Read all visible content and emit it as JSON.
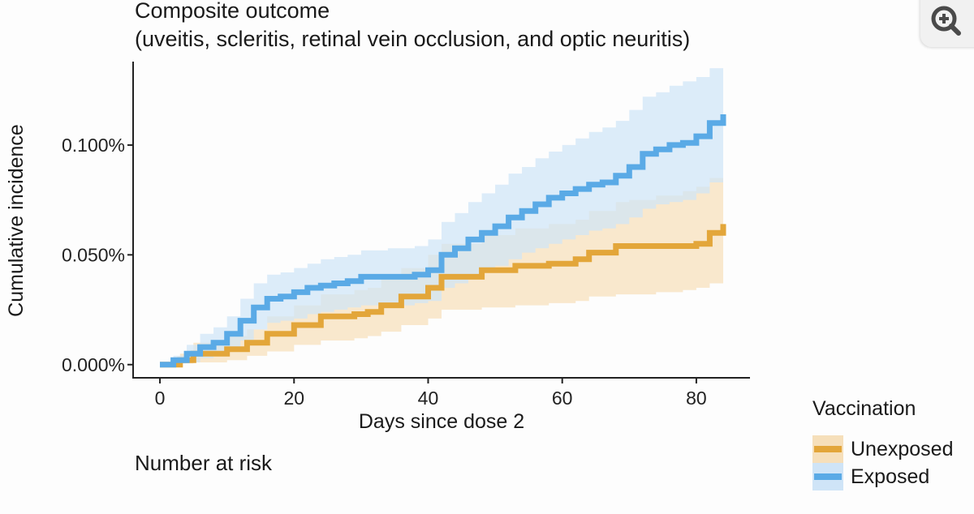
{
  "title_line1": "Composite outcome",
  "title_line2": "(uveitis, scleritis, retinal vein occlusion, and optic neuritis)",
  "risk_table_label": "Number at risk",
  "zoom_icon": "zoom-in-icon",
  "legend": {
    "title": "Vaccination",
    "items": [
      {
        "label": "Unexposed",
        "line_color": "#E3A63A",
        "fill_color": "#F6DFBA"
      },
      {
        "label": "Exposed",
        "line_color": "#5AAAE6",
        "fill_color": "#CFE4F7"
      }
    ]
  },
  "chart_data": {
    "type": "line",
    "title": "Composite outcome",
    "subtitle": "(uveitis, scleritis, retinal vein occlusion, and optic neuritis)",
    "xlabel": "Days since dose 2",
    "ylabel": "Cumulative incidence",
    "xlim": [
      -4,
      88
    ],
    "ylim": [
      -0.006,
      0.138
    ],
    "xticks": [
      0,
      20,
      40,
      60,
      80
    ],
    "xtick_labels": [
      "0",
      "20",
      "40",
      "60",
      "80"
    ],
    "yticks": [
      0,
      0.05,
      0.1
    ],
    "ytick_labels": [
      "0.000%",
      "0.050%",
      "0.100%"
    ],
    "step": true,
    "grid": false,
    "legend_position": "right-bottom",
    "series": [
      {
        "name": "Unexposed",
        "color": "#E3A63A",
        "band_color": "#F6DFBA",
        "x": [
          0,
          3,
          5,
          10,
          13,
          16,
          20,
          24,
          29,
          31,
          33,
          36,
          40,
          42,
          48,
          53,
          58,
          62,
          64,
          68,
          70,
          74,
          78,
          80,
          82,
          84
        ],
        "y": [
          0,
          0.002,
          0.005,
          0.007,
          0.01,
          0.014,
          0.018,
          0.022,
          0.023,
          0.024,
          0.027,
          0.031,
          0.035,
          0.04,
          0.043,
          0.045,
          0.046,
          0.048,
          0.051,
          0.054,
          0.054,
          0.054,
          0.054,
          0.055,
          0.06,
          0.064
        ],
        "lower": [
          0,
          0.0005,
          0.001,
          0.002,
          0.004,
          0.006,
          0.009,
          0.011,
          0.012,
          0.013,
          0.015,
          0.018,
          0.021,
          0.025,
          0.026,
          0.027,
          0.028,
          0.029,
          0.031,
          0.032,
          0.032,
          0.033,
          0.034,
          0.035,
          0.037,
          0.039
        ],
        "upper": [
          0,
          0.005,
          0.01,
          0.013,
          0.016,
          0.022,
          0.027,
          0.032,
          0.034,
          0.035,
          0.039,
          0.044,
          0.05,
          0.055,
          0.059,
          0.062,
          0.064,
          0.066,
          0.07,
          0.074,
          0.075,
          0.077,
          0.079,
          0.081,
          0.085,
          0.089
        ]
      },
      {
        "name": "Exposed",
        "color": "#5AAAE6",
        "band_color": "#CFE4F7",
        "x": [
          0,
          2,
          4,
          6,
          8,
          10,
          12,
          14,
          16,
          18,
          20,
          22,
          24,
          26,
          28,
          30,
          34,
          38,
          40,
          42,
          44,
          46,
          48,
          50,
          52,
          54,
          56,
          58,
          60,
          62,
          64,
          66,
          68,
          70,
          72,
          74,
          76,
          78,
          80,
          82,
          84
        ],
        "y": [
          0,
          0.002,
          0.005,
          0.008,
          0.01,
          0.014,
          0.02,
          0.026,
          0.03,
          0.031,
          0.033,
          0.035,
          0.036,
          0.037,
          0.038,
          0.04,
          0.04,
          0.041,
          0.043,
          0.05,
          0.053,
          0.057,
          0.06,
          0.063,
          0.067,
          0.07,
          0.073,
          0.076,
          0.078,
          0.08,
          0.082,
          0.083,
          0.086,
          0.09,
          0.096,
          0.098,
          0.1,
          0.101,
          0.104,
          0.11,
          0.114
        ],
        "lower": [
          0,
          0.0005,
          0.001,
          0.003,
          0.004,
          0.007,
          0.011,
          0.016,
          0.019,
          0.02,
          0.021,
          0.023,
          0.024,
          0.025,
          0.026,
          0.027,
          0.027,
          0.028,
          0.029,
          0.035,
          0.037,
          0.04,
          0.043,
          0.045,
          0.048,
          0.051,
          0.053,
          0.055,
          0.057,
          0.059,
          0.061,
          0.062,
          0.064,
          0.067,
          0.071,
          0.073,
          0.074,
          0.075,
          0.078,
          0.083,
          0.089
        ],
        "upper": [
          0,
          0.004,
          0.009,
          0.014,
          0.017,
          0.022,
          0.03,
          0.037,
          0.041,
          0.042,
          0.044,
          0.046,
          0.048,
          0.049,
          0.05,
          0.052,
          0.053,
          0.054,
          0.057,
          0.065,
          0.069,
          0.074,
          0.078,
          0.082,
          0.087,
          0.09,
          0.094,
          0.097,
          0.1,
          0.103,
          0.106,
          0.108,
          0.111,
          0.116,
          0.122,
          0.124,
          0.127,
          0.129,
          0.131,
          0.135,
          0.138
        ]
      }
    ]
  }
}
